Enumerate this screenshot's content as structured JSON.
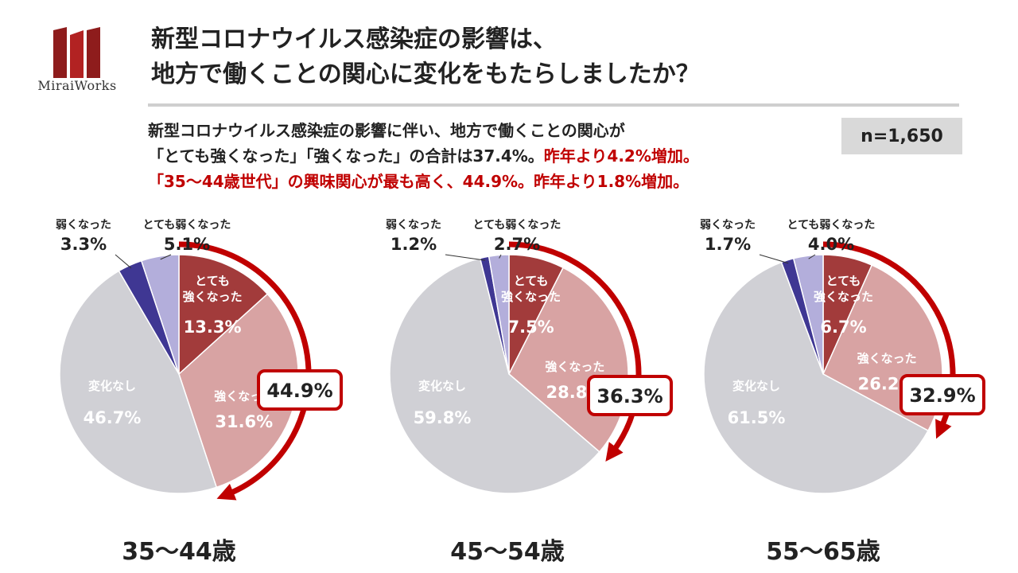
{
  "brand": {
    "name": "MiraiWorks"
  },
  "title": {
    "line1": "新型コロナウイルス感染症の影響は、",
    "line2": "地方で働くことの関心に変化をもたらしましたか？"
  },
  "summary": {
    "line1": "新型コロナウイルス感染症の影響に伴い、地方で働くことの関心が",
    "line2_prefix": "「とても強くなった」「強くなった」の合計は37.4%。",
    "line2_red": "昨年より4.2%増加。",
    "line3_red": "「35～44歳世代」の興味関心が最も高く、44.9%。昨年より1.8%増加。"
  },
  "sample_size": "n=1,650",
  "colors": {
    "very_strong": "#a23b3b",
    "strong": "#d8a3a3",
    "no_change": "#d0d0d5",
    "very_weak": "#b3aedb",
    "weak": "#3f3793",
    "accent": "#c00000"
  },
  "chart_data": [
    {
      "type": "pie",
      "title": "35～44歳",
      "labels": [
        "とても強くなった",
        "強くなった",
        "変化なし",
        "弱くなった",
        "とても弱くなった"
      ],
      "display_labels": [
        "とても\n強くなった",
        "強くなった",
        "変化なし",
        "弱くなった",
        "とても弱くなった"
      ],
      "values": [
        13.3,
        31.6,
        46.7,
        3.3,
        5.1
      ],
      "value_labels": [
        "13.3%",
        "31.6%",
        "46.7%",
        "3.3%",
        "5.1%"
      ],
      "total_label": "44.9%"
    },
    {
      "type": "pie",
      "title": "45～54歳",
      "labels": [
        "とても強くなった",
        "強くなった",
        "変化なし",
        "弱くなった",
        "とても弱くなった"
      ],
      "display_labels": [
        "とても\n強くなった",
        "強くなった",
        "変化なし",
        "弱くなった",
        "とても弱くなった"
      ],
      "values": [
        7.5,
        28.8,
        59.8,
        1.2,
        2.7
      ],
      "value_labels": [
        "7.5%",
        "28.8%",
        "59.8%",
        "1.2%",
        "2.7%"
      ],
      "total_label": "36.3%"
    },
    {
      "type": "pie",
      "title": "55～65歳",
      "labels": [
        "とても強くなった",
        "強くなった",
        "変化なし",
        "弱くなった",
        "とても弱くなった"
      ],
      "display_labels": [
        "とても\n強くなった",
        "強くなった",
        "変化なし",
        "弱くなった",
        "とても弱くなった"
      ],
      "values": [
        6.7,
        26.2,
        61.5,
        1.7,
        4.0
      ],
      "value_labels": [
        "6.7%",
        "26.2%",
        "61.5%",
        "1.7%",
        "4.0%"
      ],
      "total_label": "32.9%"
    }
  ]
}
